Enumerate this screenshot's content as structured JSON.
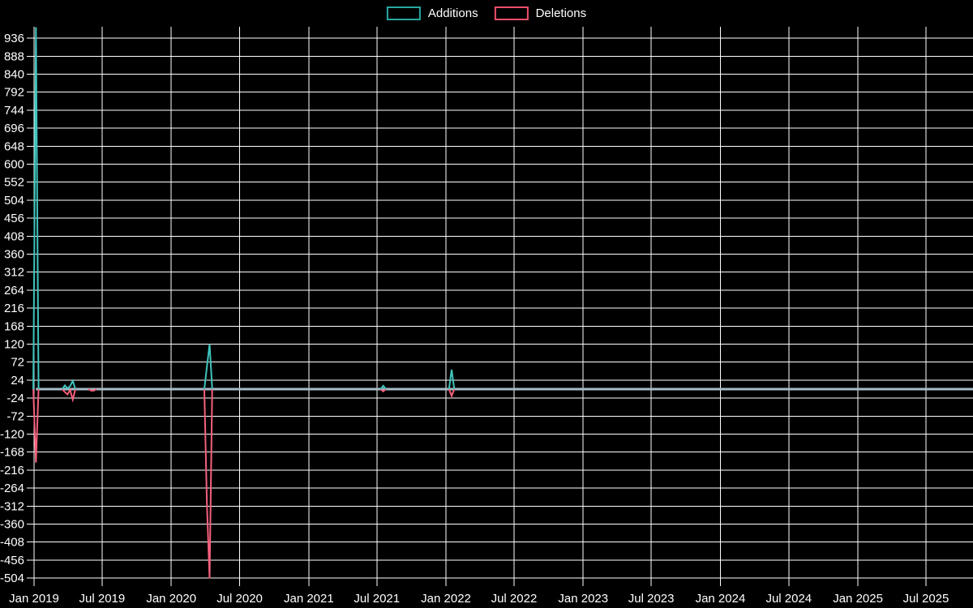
{
  "legend": {
    "items": [
      {
        "label": "Additions",
        "color": "#2aa8a2"
      },
      {
        "label": "Deletions",
        "color": "#f0506c"
      }
    ]
  },
  "chart_data": {
    "type": "line",
    "title": "",
    "description": "Weekly code additions and deletions over time; mostly flat at zero with isolated spikes",
    "grid": true,
    "background_color": "#000000",
    "gridline_color": "#ffffff",
    "text_color": "#ffffff",
    "baseline_color": "#a7bdc8",
    "legend_position": "top-center",
    "x_axis": {
      "ticks": [
        {
          "label": "Jan 2019",
          "date": "2019-01-01"
        },
        {
          "label": "Jul 2019",
          "date": "2019-07-01"
        },
        {
          "label": "Jan 2020",
          "date": "2020-01-01"
        },
        {
          "label": "Jul 2020",
          "date": "2020-07-01"
        },
        {
          "label": "Jan 2021",
          "date": "2021-01-01"
        },
        {
          "label": "Jul 2021",
          "date": "2021-07-01"
        },
        {
          "label": "Jan 2022",
          "date": "2022-01-01"
        },
        {
          "label": "Jul 2022",
          "date": "2022-07-01"
        },
        {
          "label": "Jan 2023",
          "date": "2023-01-01"
        },
        {
          "label": "Jul 2023",
          "date": "2023-07-01"
        },
        {
          "label": "Jan 2024",
          "date": "2024-01-01"
        },
        {
          "label": "Jul 2024",
          "date": "2024-07-01"
        },
        {
          "label": "Jan 2025",
          "date": "2025-01-01"
        },
        {
          "label": "Jul 2025",
          "date": "2025-07-01"
        }
      ],
      "data_start": "2019-01-06",
      "data_end": "2025-11-01"
    },
    "y_axis": {
      "tick_step": 48,
      "ticks": [
        936,
        888,
        840,
        792,
        744,
        696,
        648,
        600,
        552,
        504,
        456,
        408,
        360,
        312,
        264,
        216,
        168,
        120,
        72,
        24,
        -24,
        -72,
        -120,
        -168,
        -216,
        -264,
        -312,
        -360,
        -408,
        -456,
        -504
      ],
      "display_range": [
        -514,
        966
      ]
    },
    "series": [
      {
        "name": "Additions",
        "color": "#3fc4bc",
        "default_value": 0,
        "points": [
          {
            "date": "2019-01-06",
            "value": 965,
            "note": "clipped at chart top"
          },
          {
            "date": "2019-03-24",
            "value": 10
          },
          {
            "date": "2019-03-31",
            "value": 2
          },
          {
            "date": "2019-04-07",
            "value": 8
          },
          {
            "date": "2019-04-14",
            "value": 22
          },
          {
            "date": "2020-04-05",
            "value": 60
          },
          {
            "date": "2020-04-12",
            "value": 120
          },
          {
            "date": "2021-07-18",
            "value": 9
          },
          {
            "date": "2022-01-16",
            "value": 52
          }
        ]
      },
      {
        "name": "Deletions",
        "color": "#f4607c",
        "default_value": 0,
        "points": [
          {
            "date": "2019-01-06",
            "value": -196
          },
          {
            "date": "2019-03-24",
            "value": -8
          },
          {
            "date": "2019-03-31",
            "value": -14
          },
          {
            "date": "2019-04-07",
            "value": -2
          },
          {
            "date": "2019-04-14",
            "value": -28
          },
          {
            "date": "2019-06-02",
            "value": -4
          },
          {
            "date": "2019-06-09",
            "value": -4
          },
          {
            "date": "2020-04-05",
            "value": -310
          },
          {
            "date": "2020-04-12",
            "value": -505,
            "note": "clipped at chart bottom"
          },
          {
            "date": "2021-07-18",
            "value": -6
          },
          {
            "date": "2022-01-16",
            "value": -18
          }
        ]
      }
    ]
  }
}
